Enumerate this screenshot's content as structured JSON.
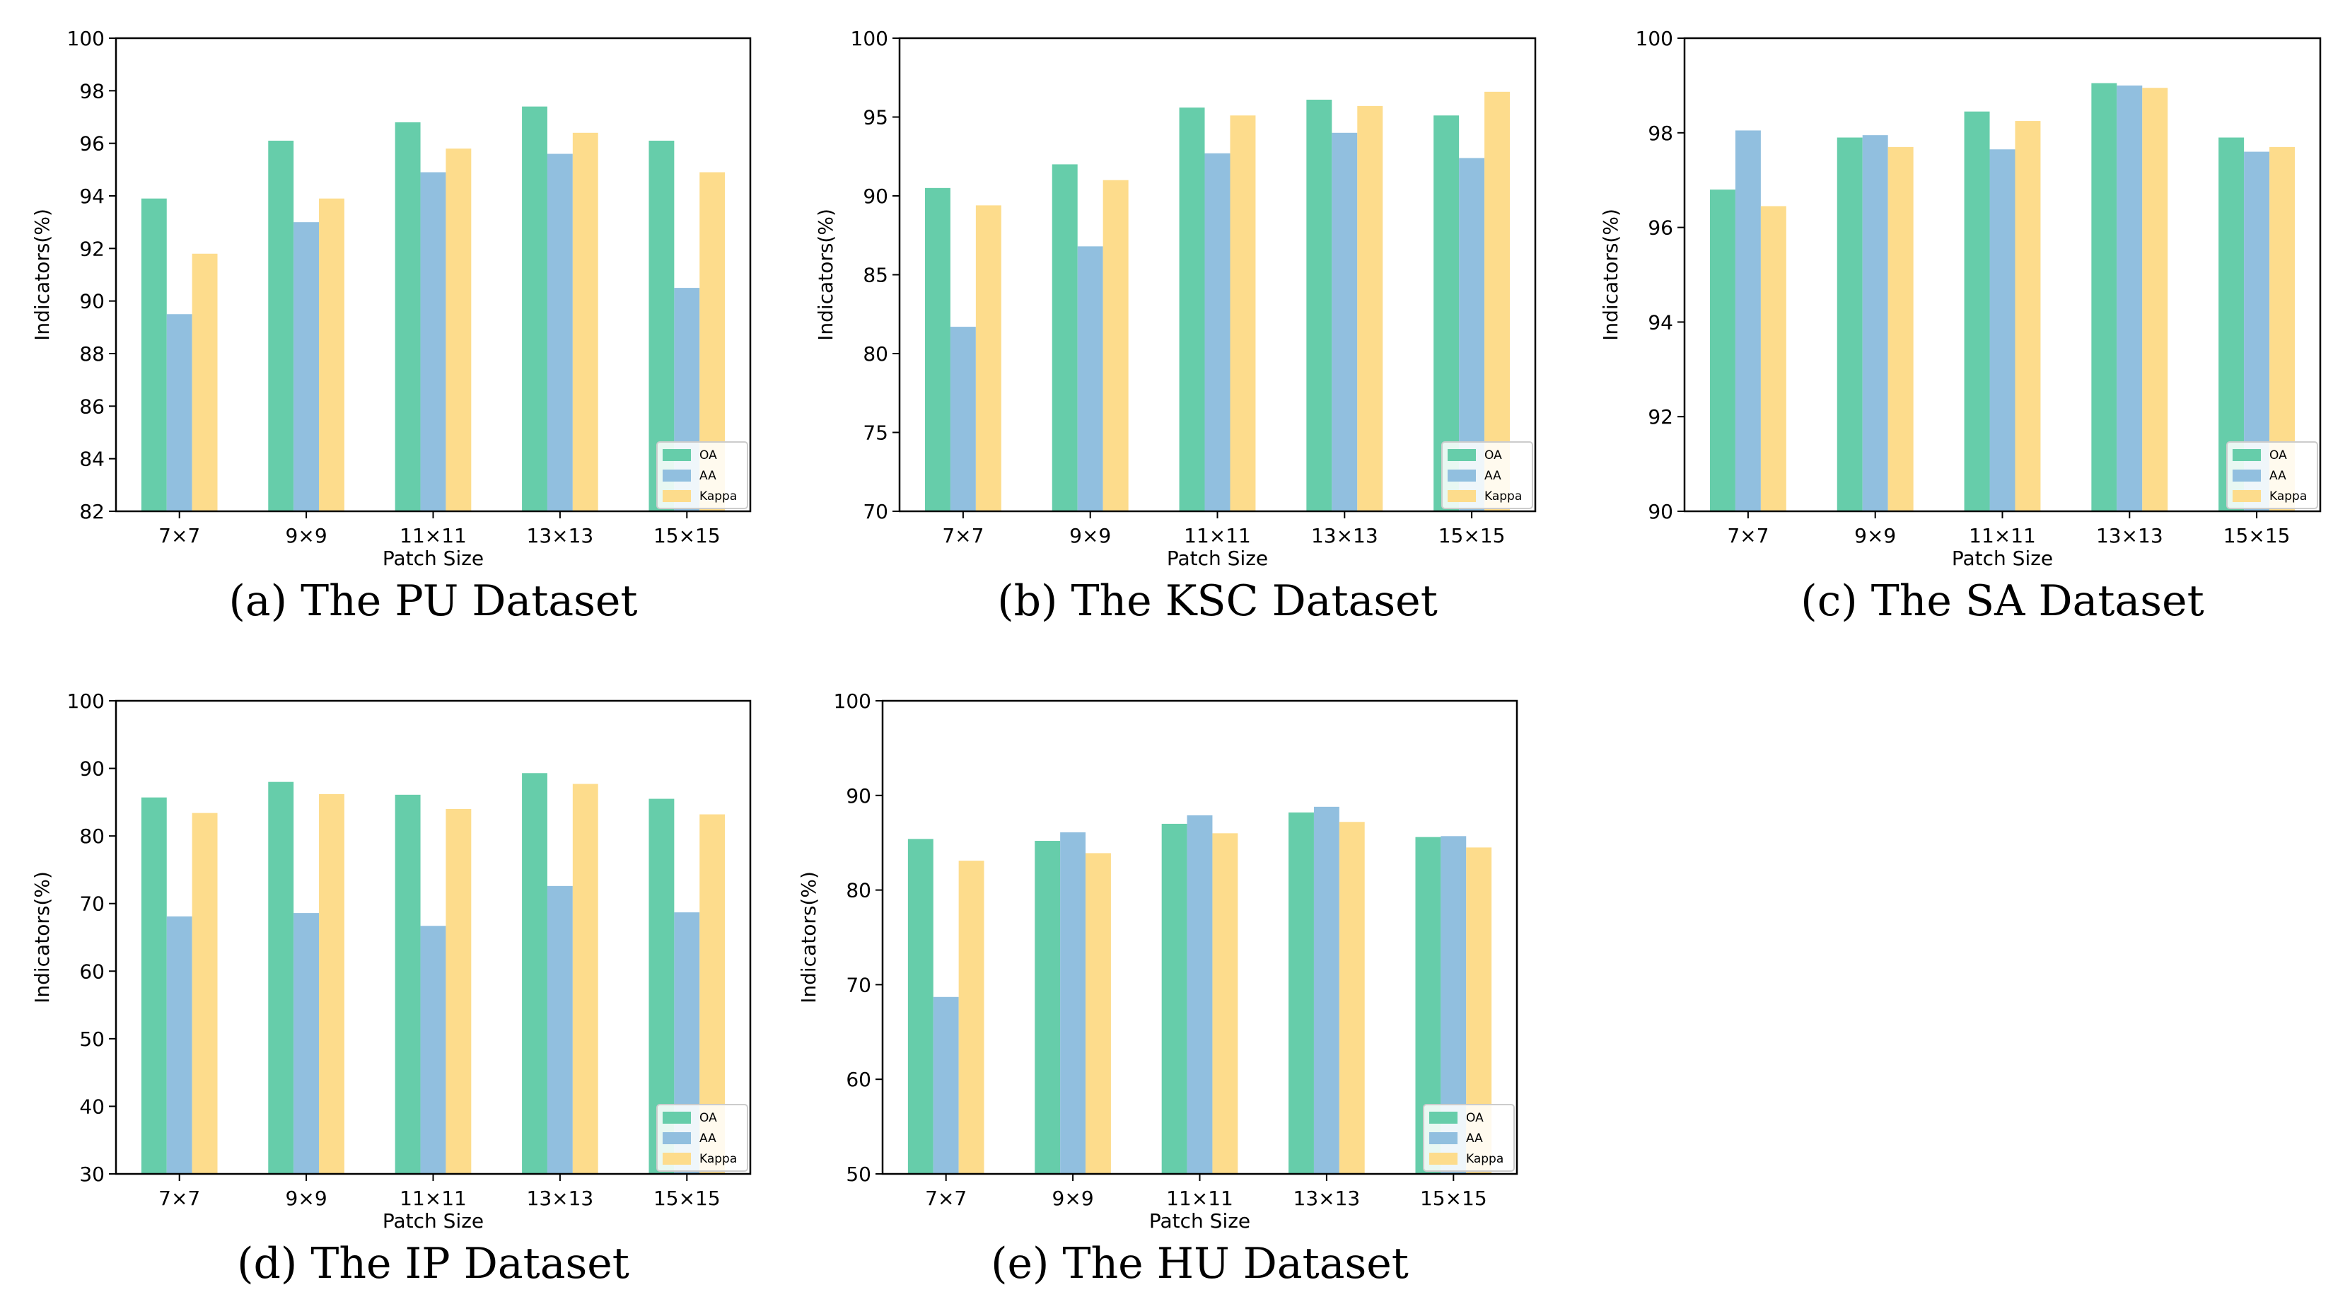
{
  "chart_data": [
    {
      "type": "bar",
      "caption": "(a)  The PU Dataset",
      "xlabel": "Patch Size",
      "ylabel": "Indicators(%)",
      "categories": [
        "7×7",
        "9×9",
        "11×11",
        "13×13",
        "15×15"
      ],
      "ylim": [
        82,
        100
      ],
      "yticks": [
        "82",
        "84",
        "86",
        "88",
        "90",
        "92",
        "94",
        "96",
        "98",
        "100"
      ],
      "legend_position": "lower-right",
      "series": [
        {
          "name": "OA",
          "color": "#66cdaa",
          "values": [
            93.9,
            96.1,
            96.8,
            97.4,
            96.1
          ]
        },
        {
          "name": "AA",
          "color": "#91bfdf",
          "values": [
            89.5,
            93.0,
            94.9,
            95.6,
            90.5
          ]
        },
        {
          "name": "Kappa",
          "color": "#fddc8c",
          "values": [
            91.8,
            93.9,
            95.8,
            96.4,
            94.9
          ]
        }
      ]
    },
    {
      "type": "bar",
      "caption": "(b)  The KSC Dataset",
      "xlabel": "Patch Size",
      "ylabel": "Indicators(%)",
      "categories": [
        "7×7",
        "9×9",
        "11×11",
        "13×13",
        "15×15"
      ],
      "ylim": [
        70,
        100
      ],
      "yticks": [
        "70",
        "75",
        "80",
        "85",
        "90",
        "95",
        "100"
      ],
      "legend_position": "lower-right",
      "series": [
        {
          "name": "OA",
          "color": "#66cdaa",
          "values": [
            90.5,
            92.0,
            95.6,
            96.1,
            95.1
          ]
        },
        {
          "name": "AA",
          "color": "#91bfdf",
          "values": [
            81.7,
            86.8,
            92.7,
            94.0,
            92.4
          ]
        },
        {
          "name": "Kappa",
          "color": "#fddc8c",
          "values": [
            89.4,
            91.0,
            95.1,
            95.7,
            96.6
          ]
        }
      ]
    },
    {
      "type": "bar",
      "caption": "(c)  The SA Dataset",
      "xlabel": "Patch Size",
      "ylabel": "Indicators(%)",
      "categories": [
        "7×7",
        "9×9",
        "11×11",
        "13×13",
        "15×15"
      ],
      "ylim": [
        90,
        100
      ],
      "yticks": [
        "90",
        "92",
        "94",
        "96",
        "98",
        "100"
      ],
      "legend_position": "lower-right",
      "series": [
        {
          "name": "OA",
          "color": "#66cdaa",
          "values": [
            96.8,
            97.9,
            98.45,
            99.05,
            97.9
          ]
        },
        {
          "name": "AA",
          "color": "#91bfdf",
          "values": [
            98.05,
            97.95,
            97.65,
            99.0,
            97.6
          ]
        },
        {
          "name": "Kappa",
          "color": "#fddc8c",
          "values": [
            96.45,
            97.7,
            98.25,
            98.95,
            97.7
          ]
        }
      ]
    },
    {
      "type": "bar",
      "caption": "(d)  The IP Dataset",
      "xlabel": "Patch Size",
      "ylabel": "Indicators(%)",
      "categories": [
        "7×7",
        "9×9",
        "11×11",
        "13×13",
        "15×15"
      ],
      "ylim": [
        30,
        100
      ],
      "yticks": [
        "30",
        "40",
        "50",
        "60",
        "70",
        "80",
        "90",
        "100"
      ],
      "legend_position": "lower-right",
      "series": [
        {
          "name": "OA",
          "color": "#66cdaa",
          "values": [
            85.7,
            88.0,
            86.1,
            89.3,
            85.5
          ]
        },
        {
          "name": "AA",
          "color": "#91bfdf",
          "values": [
            68.1,
            68.6,
            66.7,
            72.6,
            68.7
          ]
        },
        {
          "name": "Kappa",
          "color": "#fddc8c",
          "values": [
            83.4,
            86.2,
            84.0,
            87.7,
            83.2
          ]
        }
      ]
    },
    {
      "type": "bar",
      "caption": "(e)  The HU Dataset",
      "xlabel": "Patch Size",
      "ylabel": "Indicators(%)",
      "categories": [
        "7×7",
        "9×9",
        "11×11",
        "13×13",
        "15×15"
      ],
      "ylim": [
        50,
        100
      ],
      "yticks": [
        "50",
        "60",
        "70",
        "80",
        "90",
        "100"
      ],
      "legend_position": "lower-right",
      "series": [
        {
          "name": "OA",
          "color": "#66cdaa",
          "values": [
            85.4,
            85.2,
            87.0,
            88.2,
            85.6
          ]
        },
        {
          "name": "AA",
          "color": "#91bfdf",
          "values": [
            68.7,
            86.1,
            87.9,
            88.8,
            85.7
          ]
        },
        {
          "name": "Kappa",
          "color": "#fddc8c",
          "values": [
            83.1,
            83.9,
            86.0,
            87.2,
            84.5
          ]
        }
      ]
    }
  ]
}
